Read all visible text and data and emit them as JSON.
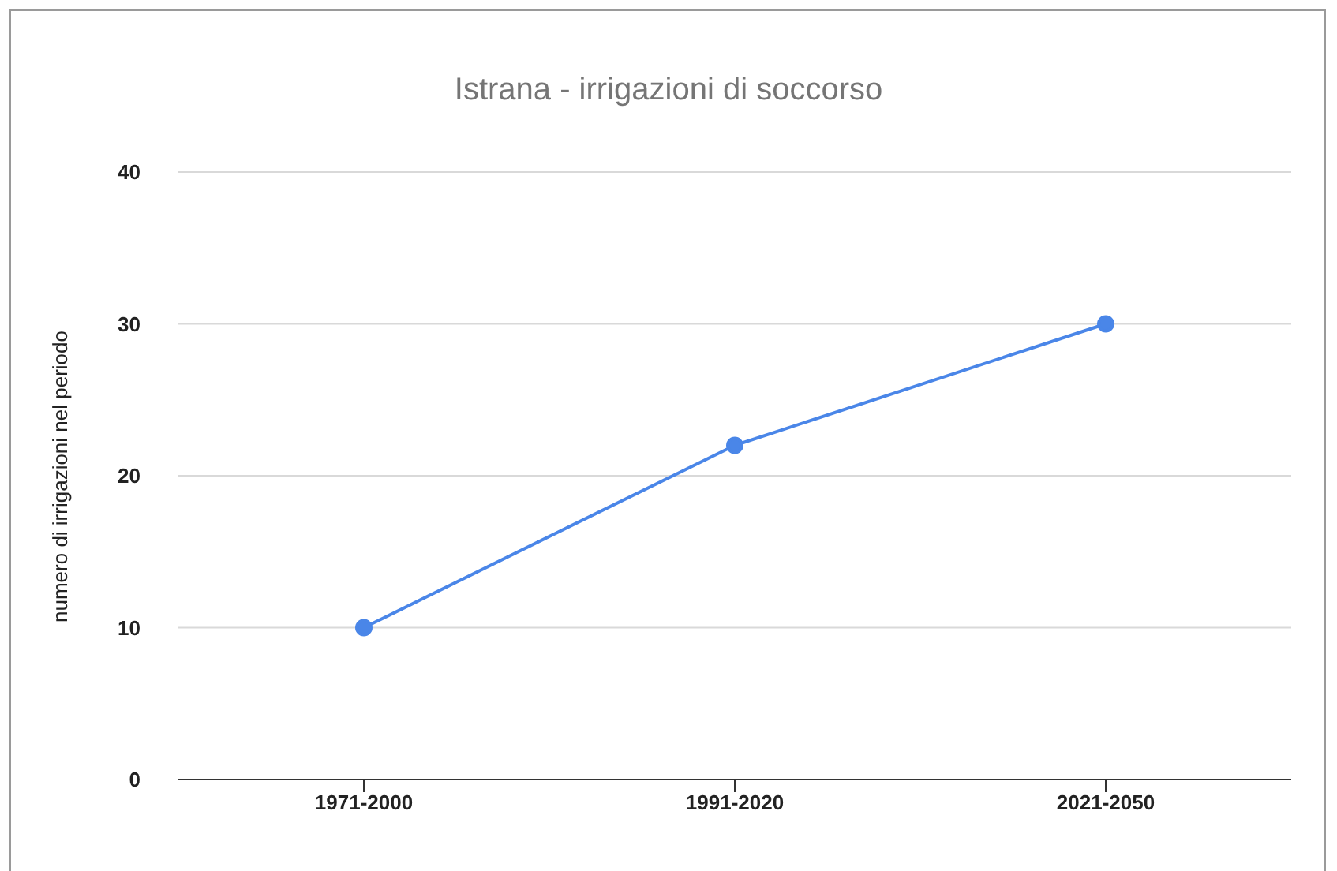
{
  "chart_data": {
    "type": "line",
    "title": "Istrana - irrigazioni di soccorso",
    "ylabel": "numero di irrigazioni nel periodo",
    "categories": [
      "1971-2000",
      "1991-2020",
      "2021-2050"
    ],
    "series": [
      {
        "color": "#4a86e8",
        "values": [
          10,
          22,
          30
        ]
      }
    ],
    "ylim": [
      0,
      40
    ],
    "yticks": [
      0,
      10,
      20,
      30,
      40
    ],
    "grid": "y",
    "legend": false,
    "marker": "circle",
    "line_style": "solid"
  }
}
